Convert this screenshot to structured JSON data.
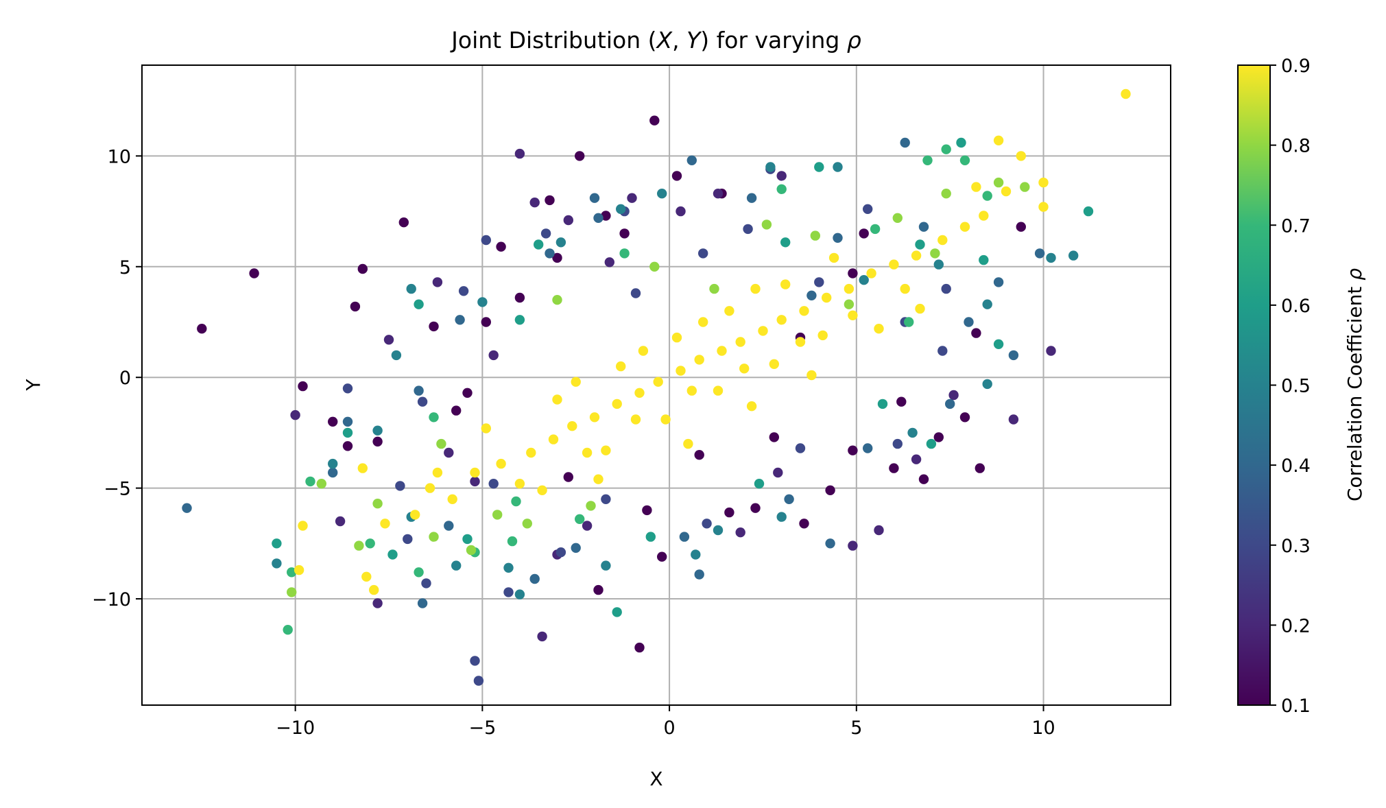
{
  "chart_data": {
    "type": "scatter",
    "title": "Joint Distribution (X, Y) for varying ρ",
    "title_parts": {
      "pre": "Joint Distribution (",
      "x": "X",
      "sep": ", ",
      "y": "Y",
      "post": ") for varying ",
      "rho": "ρ"
    },
    "xlabel": "X",
    "ylabel": "Y",
    "xlim": [
      -14.1,
      13.4
    ],
    "ylim": [
      -14.8,
      14.1
    ],
    "xticks": [
      -10,
      -5,
      0,
      5,
      10
    ],
    "yticks": [
      -10,
      -5,
      0,
      5,
      10
    ],
    "xtick_labels": [
      "−10",
      "−5",
      "0",
      "5",
      "10"
    ],
    "ytick_labels": [
      "−10",
      "−5",
      "0",
      "5",
      "10"
    ],
    "grid": true,
    "colorbar": {
      "label": "Correlation Coefficient ρ",
      "label_text": "Correlation Coefficient ",
      "label_symbol": "ρ",
      "colormap": "viridis",
      "range": [
        0.1,
        0.9
      ],
      "ticks": [
        0.1,
        0.2,
        0.3,
        0.4,
        0.5,
        0.6,
        0.7,
        0.8,
        0.9
      ],
      "tick_labels": [
        "0.1",
        "0.2",
        "0.3",
        "0.4",
        "0.5",
        "0.6",
        "0.7",
        "0.8",
        "0.9"
      ]
    },
    "series": [
      {
        "rho": 0.1,
        "color": "#440154",
        "points": [
          [
            -11.1,
            4.7
          ],
          [
            -12.5,
            2.2
          ],
          [
            -0.4,
            11.6
          ],
          [
            -4.5,
            5.9
          ],
          [
            -7.1,
            7.0
          ],
          [
            -8.2,
            4.9
          ],
          [
            -8.4,
            3.2
          ],
          [
            -9.8,
            -0.4
          ],
          [
            -9.0,
            -2.0
          ],
          [
            -8.6,
            -3.1
          ],
          [
            1.6,
            -6.1
          ],
          [
            3.6,
            -6.6
          ],
          [
            8.3,
            -4.1
          ],
          [
            -0.8,
            -12.2
          ],
          [
            7.2,
            -2.7
          ],
          [
            -1.9,
            -9.6
          ],
          [
            -2.4,
            10.0
          ],
          [
            -3.2,
            8.0
          ],
          [
            5.2,
            6.5
          ],
          [
            4.9,
            4.7
          ],
          [
            -5.7,
            -1.5
          ],
          [
            -6.3,
            2.3
          ],
          [
            -0.6,
            -6.0
          ],
          [
            2.3,
            -5.9
          ],
          [
            4.3,
            -5.1
          ],
          [
            6.0,
            -4.1
          ],
          [
            2.8,
            -2.7
          ],
          [
            6.2,
            -1.1
          ],
          [
            7.9,
            -1.8
          ],
          [
            1.4,
            8.3
          ],
          [
            -1.7,
            7.3
          ],
          [
            -3.0,
            5.4
          ],
          [
            -4.9,
            2.5
          ],
          [
            -5.4,
            -0.7
          ],
          [
            0.2,
            9.1
          ],
          [
            -7.8,
            -2.9
          ],
          [
            9.4,
            6.8
          ],
          [
            8.2,
            2.0
          ],
          [
            -0.2,
            -8.1
          ],
          [
            4.9,
            -3.3
          ],
          [
            6.8,
            -4.6
          ],
          [
            -2.7,
            -4.5
          ],
          [
            3.5,
            1.8
          ],
          [
            -1.2,
            6.5
          ],
          [
            -4.0,
            3.6
          ],
          [
            0.8,
            -3.5
          ]
        ]
      },
      {
        "rho": 0.2,
        "color": "#482878",
        "points": [
          [
            -4.0,
            10.1
          ],
          [
            -10.0,
            -1.7
          ],
          [
            -1.0,
            8.1
          ],
          [
            1.3,
            8.3
          ],
          [
            -3.6,
            7.9
          ],
          [
            -6.2,
            4.3
          ],
          [
            -7.5,
            1.7
          ],
          [
            -5.9,
            -3.4
          ],
          [
            5.6,
            -6.9
          ],
          [
            4.9,
            -7.6
          ],
          [
            1.9,
            -7.0
          ],
          [
            -3.4,
            -11.7
          ],
          [
            -7.8,
            -10.2
          ],
          [
            -8.8,
            -6.5
          ],
          [
            9.2,
            -1.9
          ],
          [
            10.2,
            1.2
          ],
          [
            -2.7,
            7.1
          ],
          [
            0.3,
            7.5
          ],
          [
            3.0,
            9.1
          ],
          [
            -5.2,
            -4.7
          ],
          [
            2.9,
            -4.3
          ],
          [
            6.6,
            -3.7
          ],
          [
            -1.6,
            5.2
          ],
          [
            -4.7,
            1.0
          ],
          [
            -2.2,
            -6.7
          ],
          [
            7.6,
            -0.8
          ],
          [
            -3.0,
            -8.0
          ]
        ]
      },
      {
        "rho": 0.3,
        "color": "#3e4989",
        "points": [
          [
            -7.2,
            -4.9
          ],
          [
            -5.5,
            3.9
          ],
          [
            -4.9,
            6.2
          ],
          [
            -1.2,
            7.5
          ],
          [
            2.1,
            6.7
          ],
          [
            2.7,
            9.4
          ],
          [
            5.3,
            7.6
          ],
          [
            7.4,
            4.0
          ],
          [
            3.5,
            -3.2
          ],
          [
            -2.9,
            -7.9
          ],
          [
            -6.5,
            -9.3
          ],
          [
            -4.3,
            -9.7
          ],
          [
            -5.2,
            -12.8
          ],
          [
            -5.1,
            -13.7
          ],
          [
            -3.3,
            6.5
          ],
          [
            -0.9,
            3.8
          ],
          [
            0.9,
            5.6
          ],
          [
            4.0,
            4.3
          ],
          [
            6.3,
            2.5
          ],
          [
            -6.6,
            -1.1
          ],
          [
            -4.7,
            -4.8
          ],
          [
            -1.7,
            -5.5
          ],
          [
            1.0,
            -6.6
          ],
          [
            6.1,
            -3.0
          ],
          [
            7.3,
            1.2
          ],
          [
            -7.0,
            -7.3
          ],
          [
            -8.6,
            -0.5
          ]
        ]
      },
      {
        "rho": 0.4,
        "color": "#31688e",
        "points": [
          [
            6.3,
            10.6
          ],
          [
            -12.9,
            -5.9
          ],
          [
            2.2,
            8.1
          ],
          [
            4.5,
            6.3
          ],
          [
            6.8,
            6.8
          ],
          [
            8.8,
            4.3
          ],
          [
            9.2,
            1.0
          ],
          [
            9.9,
            5.6
          ],
          [
            0.6,
            9.8
          ],
          [
            -2.0,
            8.1
          ],
          [
            -6.6,
            -10.2
          ],
          [
            -3.6,
            -9.1
          ],
          [
            0.8,
            -8.9
          ],
          [
            -1.9,
            7.2
          ],
          [
            -3.2,
            5.6
          ],
          [
            -5.6,
            2.6
          ],
          [
            -6.7,
            -0.6
          ],
          [
            -5.9,
            -6.7
          ],
          [
            -2.5,
            -7.7
          ],
          [
            0.4,
            -7.2
          ],
          [
            3.2,
            -5.5
          ],
          [
            5.3,
            -3.2
          ],
          [
            7.5,
            -1.2
          ],
          [
            3.8,
            3.7
          ],
          [
            -8.6,
            -2.0
          ],
          [
            -9.0,
            -4.3
          ],
          [
            4.3,
            -7.5
          ],
          [
            8.0,
            2.5
          ]
        ]
      },
      {
        "rho": 0.5,
        "color": "#26828e",
        "points": [
          [
            10.8,
            5.5
          ],
          [
            -10.5,
            -8.4
          ],
          [
            -9.0,
            -3.9
          ],
          [
            -4.0,
            -9.8
          ],
          [
            0.7,
            -8.0
          ],
          [
            3.0,
            -6.3
          ],
          [
            6.5,
            -2.5
          ],
          [
            8.5,
            3.3
          ],
          [
            10.2,
            5.4
          ],
          [
            8.5,
            -0.3
          ],
          [
            2.7,
            9.5
          ],
          [
            -0.2,
            8.3
          ],
          [
            -2.9,
            6.1
          ],
          [
            -5.0,
            3.4
          ],
          [
            -7.3,
            1.0
          ],
          [
            -7.8,
            -2.4
          ],
          [
            -6.9,
            -6.3
          ],
          [
            -4.3,
            -8.6
          ],
          [
            -1.7,
            -8.5
          ],
          [
            7.2,
            5.1
          ],
          [
            5.2,
            4.4
          ],
          [
            1.3,
            -6.9
          ],
          [
            -1.3,
            7.6
          ],
          [
            -5.7,
            -8.5
          ],
          [
            -6.9,
            4.0
          ],
          [
            4.5,
            9.5
          ]
        ]
      },
      {
        "rho": 0.6,
        "color": "#1f9e89",
        "points": [
          [
            11.2,
            7.5
          ],
          [
            7.8,
            10.6
          ],
          [
            8.4,
            5.3
          ],
          [
            8.8,
            1.5
          ],
          [
            7.0,
            -3.0
          ],
          [
            4.0,
            9.5
          ],
          [
            -1.4,
            -10.6
          ],
          [
            -10.5,
            -7.5
          ],
          [
            -7.4,
            -8.0
          ],
          [
            -5.4,
            -7.3
          ],
          [
            -6.7,
            3.3
          ],
          [
            -8.6,
            -2.5
          ],
          [
            -3.5,
            6.0
          ],
          [
            6.7,
            6.0
          ],
          [
            -0.5,
            -7.2
          ],
          [
            2.4,
            -4.8
          ],
          [
            5.7,
            -1.2
          ],
          [
            3.1,
            6.1
          ],
          [
            -4.0,
            2.6
          ]
        ]
      },
      {
        "rho": 0.7,
        "color": "#35b779",
        "points": [
          [
            7.4,
            10.3
          ],
          [
            6.9,
            9.8
          ],
          [
            -10.2,
            -11.4
          ],
          [
            -10.1,
            -8.8
          ],
          [
            -9.6,
            -4.7
          ],
          [
            -8.0,
            -7.5
          ],
          [
            -6.7,
            -8.8
          ],
          [
            -5.2,
            -7.9
          ],
          [
            -4.2,
            -7.4
          ],
          [
            7.9,
            9.8
          ],
          [
            8.5,
            8.2
          ],
          [
            3.0,
            8.5
          ],
          [
            -1.2,
            5.6
          ],
          [
            -6.3,
            -1.8
          ],
          [
            -4.1,
            -5.6
          ],
          [
            6.4,
            2.5
          ],
          [
            5.5,
            6.7
          ],
          [
            -2.4,
            -6.4
          ]
        ]
      },
      {
        "rho": 0.8,
        "color": "#90d743",
        "points": [
          [
            -10.1,
            -9.7
          ],
          [
            -9.3,
            -4.8
          ],
          [
            -8.3,
            -7.6
          ],
          [
            -6.3,
            -7.2
          ],
          [
            -5.3,
            -7.8
          ],
          [
            -3.8,
            -6.6
          ],
          [
            8.8,
            8.8
          ],
          [
            9.5,
            8.6
          ],
          [
            7.4,
            8.3
          ],
          [
            2.6,
            6.9
          ],
          [
            -0.4,
            5.0
          ],
          [
            -3.0,
            3.5
          ],
          [
            -6.1,
            -3.0
          ],
          [
            4.8,
            3.3
          ],
          [
            6.1,
            7.2
          ],
          [
            -7.8,
            -5.7
          ],
          [
            -4.6,
            -6.2
          ],
          [
            7.1,
            5.6
          ],
          [
            1.2,
            4.0
          ],
          [
            -2.1,
            -5.8
          ],
          [
            3.9,
            6.4
          ]
        ]
      },
      {
        "rho": 0.9,
        "color": "#fde725",
        "points": [
          [
            12.2,
            12.8
          ],
          [
            9.4,
            10.0
          ],
          [
            8.8,
            10.7
          ],
          [
            10.0,
            8.8
          ],
          [
            10.0,
            7.7
          ],
          [
            9.0,
            8.4
          ],
          [
            8.2,
            8.6
          ],
          [
            -9.8,
            -6.7
          ],
          [
            -9.9,
            -8.7
          ],
          [
            -8.1,
            -9.0
          ],
          [
            -7.9,
            -9.6
          ],
          [
            -7.6,
            -6.6
          ],
          [
            -6.8,
            -6.2
          ],
          [
            -6.4,
            -5.0
          ],
          [
            -5.2,
            -4.3
          ],
          [
            -4.5,
            -3.9
          ],
          [
            -3.7,
            -3.4
          ],
          [
            -3.1,
            -2.8
          ],
          [
            -2.6,
            -2.2
          ],
          [
            -2.0,
            -1.8
          ],
          [
            -1.4,
            -1.2
          ],
          [
            -0.8,
            -0.7
          ],
          [
            -0.3,
            -0.2
          ],
          [
            0.3,
            0.3
          ],
          [
            0.8,
            0.8
          ],
          [
            1.4,
            1.2
          ],
          [
            1.9,
            1.6
          ],
          [
            2.5,
            2.1
          ],
          [
            3.0,
            2.6
          ],
          [
            3.6,
            3.0
          ],
          [
            4.2,
            3.6
          ],
          [
            4.8,
            4.0
          ],
          [
            5.4,
            4.7
          ],
          [
            6.0,
            5.1
          ],
          [
            6.6,
            5.5
          ],
          [
            7.3,
            6.2
          ],
          [
            7.9,
            6.8
          ],
          [
            8.4,
            7.3
          ],
          [
            -5.8,
            -5.5
          ],
          [
            -4.0,
            -4.8
          ],
          [
            -2.2,
            -3.4
          ],
          [
            -0.9,
            -1.9
          ],
          [
            0.6,
            -0.6
          ],
          [
            2.0,
            0.4
          ],
          [
            3.5,
            1.6
          ],
          [
            4.9,
            2.8
          ],
          [
            6.3,
            4.0
          ],
          [
            -4.9,
            -2.3
          ],
          [
            -3.0,
            -1.0
          ],
          [
            -1.3,
            0.5
          ],
          [
            0.2,
            1.8
          ],
          [
            1.6,
            3.0
          ],
          [
            3.1,
            4.2
          ],
          [
            4.4,
            5.4
          ],
          [
            -3.4,
            -5.1
          ],
          [
            -1.7,
            -3.3
          ],
          [
            -0.1,
            -1.9
          ],
          [
            1.3,
            -0.6
          ],
          [
            2.8,
            0.6
          ],
          [
            4.1,
            1.9
          ],
          [
            -6.2,
            -4.3
          ],
          [
            -2.5,
            -0.2
          ],
          [
            -0.7,
            1.2
          ],
          [
            0.9,
            2.5
          ],
          [
            2.3,
            4.0
          ],
          [
            -1.9,
            -4.6
          ],
          [
            0.5,
            -3.0
          ],
          [
            2.2,
            -1.3
          ],
          [
            3.8,
            0.1
          ],
          [
            5.6,
            2.2
          ],
          [
            -8.2,
            -4.1
          ],
          [
            6.7,
            3.1
          ]
        ]
      }
    ]
  }
}
